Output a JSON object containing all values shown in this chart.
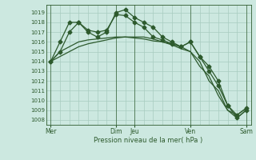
{
  "title": "Pression niveau de la mer( hPa )",
  "background_color": "#cce8e0",
  "grid_color_major": "#a8ccbf",
  "grid_color_minor": "#c0ddd6",
  "line_color": "#2d5a2d",
  "ylim": [
    1007.5,
    1019.8
  ],
  "yticks": [
    1008,
    1009,
    1010,
    1011,
    1012,
    1013,
    1014,
    1015,
    1016,
    1017,
    1018,
    1019
  ],
  "xtick_labels": [
    "Mer",
    "Dim",
    "Jeu",
    "Ven",
    "Sam"
  ],
  "xtick_positions": [
    0,
    7,
    9,
    15,
    21
  ],
  "n_points": 22,
  "lines": [
    {
      "y": [
        1014,
        1015,
        1017,
        1018,
        1017,
        1016.5,
        1017,
        1019,
        1019.3,
        1018.5,
        1018,
        1017.5,
        1016.5,
        1016,
        1015.5,
        1016,
        1014.5,
        1013,
        1011.5,
        1009.5,
        1008.5,
        1009.2
      ],
      "marker": "D",
      "markersize": 2.5,
      "linewidth": 0.9
    },
    {
      "y": [
        1014,
        1016,
        1018,
        1018,
        1017.2,
        1017,
        1017.2,
        1018.8,
        1018.7,
        1018,
        1017.5,
        1016.5,
        1016.2,
        1015.8,
        1015.5,
        1016,
        1014.5,
        1013.5,
        1012,
        1009.5,
        1008.2,
        1009
      ],
      "marker": "D",
      "markersize": 2.5,
      "linewidth": 0.9
    },
    {
      "y": [
        1014,
        1015,
        1015.5,
        1016,
        1016.2,
        1016.3,
        1016.4,
        1016.5,
        1016.5,
        1016.5,
        1016.5,
        1016.3,
        1016,
        1015.7,
        1015.3,
        1015,
        1013.5,
        1012.5,
        1010.5,
        1009,
        1008.2,
        1009
      ],
      "marker": null,
      "markersize": 0,
      "linewidth": 0.9
    },
    {
      "y": [
        1014,
        1014.5,
        1015,
        1015.5,
        1015.8,
        1016,
        1016.2,
        1016.4,
        1016.5,
        1016.4,
        1016.3,
        1016.1,
        1016,
        1015.8,
        1015.5,
        1015,
        1014,
        1012,
        1011,
        1009,
        1008.5,
        1009.2
      ],
      "marker": null,
      "markersize": 0,
      "linewidth": 0.9
    }
  ]
}
